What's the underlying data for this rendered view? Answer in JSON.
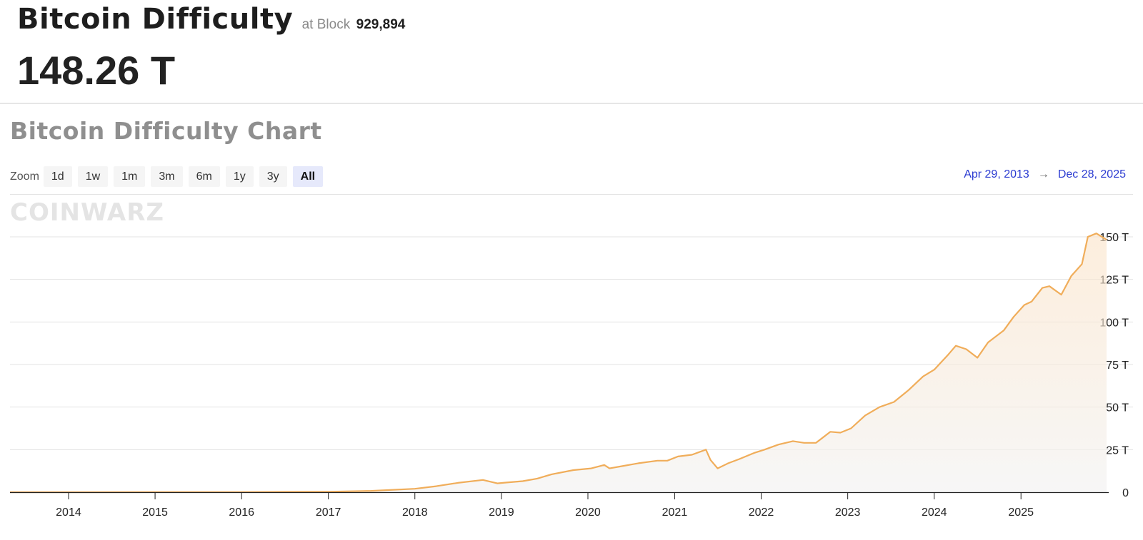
{
  "header": {
    "title": "Bitcoin Difficulty",
    "at_label": "at Block",
    "block_number": "929,894",
    "current_value": "148.26 T"
  },
  "chart_section": {
    "title": "Bitcoin Difficulty Chart",
    "zoom_label": "Zoom",
    "zoom_buttons": [
      {
        "label": "1d",
        "active": false
      },
      {
        "label": "1w",
        "active": false
      },
      {
        "label": "1m",
        "active": false
      },
      {
        "label": "3m",
        "active": false
      },
      {
        "label": "6m",
        "active": false
      },
      {
        "label": "1y",
        "active": false
      },
      {
        "label": "3y",
        "active": false
      },
      {
        "label": "All",
        "active": true
      }
    ],
    "range_start": "Apr 29, 2013",
    "range_arrow": "→",
    "range_end": "Dec 28, 2025",
    "watermark": "COINWARZ"
  },
  "colors": {
    "line": "#f0ad5a",
    "grid": "#e3e3e3",
    "axis": "#222222",
    "accent_blue": "#2b3bd1"
  },
  "chart_data": {
    "type": "area",
    "title": "Bitcoin Difficulty Chart",
    "xlabel": "",
    "ylabel": "",
    "x_range": [
      "2013-04-29",
      "2025-12-28"
    ],
    "ylim": [
      0,
      150
    ],
    "y_unit": "T",
    "y_ticks": [
      {
        "value": 0,
        "label": "0"
      },
      {
        "value": 25,
        "label": "25 T"
      },
      {
        "value": 50,
        "label": "50 T"
      },
      {
        "value": 75,
        "label": "75 T"
      },
      {
        "value": 100,
        "label": "100 T"
      },
      {
        "value": 125,
        "label": "125 T"
      },
      {
        "value": 150,
        "label": "150 T"
      }
    ],
    "x_ticks": [
      {
        "date": "2014-01-01",
        "label": "2014"
      },
      {
        "date": "2015-01-01",
        "label": "2015"
      },
      {
        "date": "2016-01-01",
        "label": "2016"
      },
      {
        "date": "2017-01-01",
        "label": "2017"
      },
      {
        "date": "2018-01-01",
        "label": "2018"
      },
      {
        "date": "2019-01-01",
        "label": "2019"
      },
      {
        "date": "2020-01-01",
        "label": "2020"
      },
      {
        "date": "2021-01-01",
        "label": "2021"
      },
      {
        "date": "2022-01-01",
        "label": "2022"
      },
      {
        "date": "2023-01-01",
        "label": "2023"
      },
      {
        "date": "2024-01-01",
        "label": "2024"
      },
      {
        "date": "2025-01-01",
        "label": "2025"
      }
    ],
    "grid": true,
    "legend": "none",
    "series": [
      {
        "x": [
          "2013-04-29",
          "2014-01-01",
          "2015-01-01",
          "2016-01-01",
          "2016-07-01",
          "2017-01-01",
          "2017-07-01",
          "2018-01-01",
          "2018-04-01",
          "2018-07-01",
          "2018-10-15",
          "2018-12-15",
          "2019-01-15",
          "2019-04-01",
          "2019-06-01",
          "2019-08-01",
          "2019-11-01",
          "2020-01-15",
          "2020-03-10",
          "2020-04-01",
          "2020-06-01",
          "2020-08-01",
          "2020-10-20",
          "2020-12-01",
          "2021-01-15",
          "2021-03-15",
          "2021-05-13",
          "2021-06-01",
          "2021-07-01",
          "2021-08-15",
          "2021-10-01",
          "2021-12-01",
          "2022-01-15",
          "2022-03-15",
          "2022-05-15",
          "2022-07-01",
          "2022-08-20",
          "2022-10-20",
          "2022-12-01",
          "2023-01-15",
          "2023-03-15",
          "2023-05-15",
          "2023-07-15",
          "2023-09-15",
          "2023-11-15",
          "2024-01-01",
          "2024-03-01",
          "2024-04-01",
          "2024-05-15",
          "2024-07-01",
          "2024-08-15",
          "2024-10-20",
          "2024-12-01",
          "2025-01-15",
          "2025-02-15",
          "2025-04-01",
          "2025-05-01",
          "2025-06-20",
          "2025-08-01",
          "2025-09-15",
          "2025-10-10",
          "2025-11-15",
          "2025-12-28"
        ],
        "values": [
          0.01,
          0.002,
          0.04,
          0.1,
          0.2,
          0.3,
          0.8,
          2.0,
          3.5,
          5.5,
          7.2,
          5.2,
          5.6,
          6.5,
          8.0,
          10.5,
          13.0,
          14.0,
          16.0,
          14.0,
          15.5,
          17.0,
          18.5,
          18.5,
          21.0,
          22.0,
          25.0,
          19.0,
          14.0,
          17.0,
          19.5,
          23.0,
          25.0,
          28.0,
          30.0,
          29.0,
          29.0,
          35.5,
          35.0,
          37.5,
          45.0,
          50.0,
          53.0,
          60.0,
          68.0,
          72.0,
          81.0,
          86.0,
          84.0,
          79.0,
          88.0,
          95.0,
          103.0,
          110.0,
          112.0,
          120.0,
          121.0,
          116.0,
          127.0,
          134.0,
          150.0,
          152.0,
          148.3
        ]
      }
    ]
  }
}
